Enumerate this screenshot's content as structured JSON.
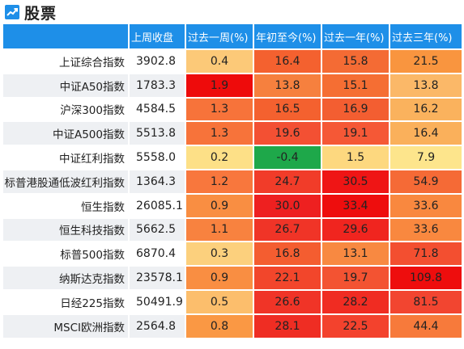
{
  "header": {
    "title": "股票",
    "icon": "trending-up-icon"
  },
  "table": {
    "columns": [
      "",
      "上周收盘",
      "过去一周(%)",
      "年初至今(%)",
      "过去一年(%)",
      "过去三年(%)"
    ],
    "rows": [
      {
        "name": "上证综合指数",
        "close": "3902.8",
        "w1": "0.4",
        "ytd": "16.4",
        "y1": "15.8",
        "y3": "21.5",
        "colors": [
          "#fcc978",
          "#f4612f",
          "#f46b34",
          "#f9953f"
        ]
      },
      {
        "name": "中证A50指数",
        "close": "1783.3",
        "w1": "1.9",
        "ytd": "13.8",
        "y1": "15.1",
        "y3": "13.8",
        "colors": [
          "#ee0b0b",
          "#f6803e",
          "#f56e33",
          "#fbb868"
        ]
      },
      {
        "name": "沪深300指数",
        "close": "4584.5",
        "w1": "1.3",
        "ytd": "16.5",
        "y1": "16.9",
        "y3": "16.2",
        "colors": [
          "#f7733a",
          "#f4612f",
          "#f35e31",
          "#fab25d"
        ]
      },
      {
        "name": "中证A500指数",
        "close": "5513.8",
        "w1": "1.3",
        "ytd": "19.6",
        "y1": "19.1",
        "y3": "16.4",
        "colors": [
          "#f7733a",
          "#f35033",
          "#f55836",
          "#fab05b"
        ]
      },
      {
        "name": "中证红利指数",
        "close": "5558.0",
        "w1": "0.2",
        "ytd": "-0.4",
        "y1": "1.5",
        "y3": "7.9",
        "colors": [
          "#fde087",
          "#1ea84a",
          "#fdd87f",
          "#fde58c"
        ]
      },
      {
        "name": "标普港股通低波红利指数",
        "close": "1364.3",
        "w1": "1.2",
        "ytd": "24.7",
        "y1": "30.5",
        "y3": "54.9",
        "colors": [
          "#f8773d",
          "#f13c29",
          "#ef1515",
          "#f56a36"
        ]
      },
      {
        "name": "恒生指数",
        "close": "26085.1",
        "w1": "0.9",
        "ytd": "30.0",
        "y1": "33.4",
        "y3": "33.6",
        "colors": [
          "#f98e42",
          "#ee2020",
          "#ee0d0d",
          "#f9883f"
        ]
      },
      {
        "name": "恒生科技指数",
        "close": "5662.5",
        "w1": "1.1",
        "ytd": "26.7",
        "y1": "29.6",
        "y3": "33.6",
        "colors": [
          "#f8823f",
          "#f03427",
          "#f0251f",
          "#f9883f"
        ]
      },
      {
        "name": "标普500指数",
        "close": "6870.4",
        "w1": "0.3",
        "ytd": "16.8",
        "y1": "13.1",
        "y3": "71.8",
        "colors": [
          "#fcd07d",
          "#f45d30",
          "#f88941",
          "#f34f30"
        ]
      },
      {
        "name": "纳斯达克指数",
        "close": "23578.1",
        "w1": "0.9",
        "ytd": "22.1",
        "y1": "19.7",
        "y3": "109.8",
        "colors": [
          "#f98e42",
          "#f2462b",
          "#f35332",
          "#ee0d0d"
        ]
      },
      {
        "name": "日经225指数",
        "close": "50491.9",
        "w1": "0.5",
        "ytd": "26.6",
        "y1": "28.2",
        "y3": "81.5",
        "colors": [
          "#fcbe6c",
          "#f03427",
          "#f02c22",
          "#f24530"
        ]
      },
      {
        "name": "MSCI欧洲指数",
        "close": "2564.8",
        "w1": "0.8",
        "ytd": "28.1",
        "y1": "22.5",
        "y3": "44.4",
        "colors": [
          "#fa9844",
          "#ef2d23",
          "#f3422d",
          "#f77a3b"
        ]
      }
    ]
  }
}
